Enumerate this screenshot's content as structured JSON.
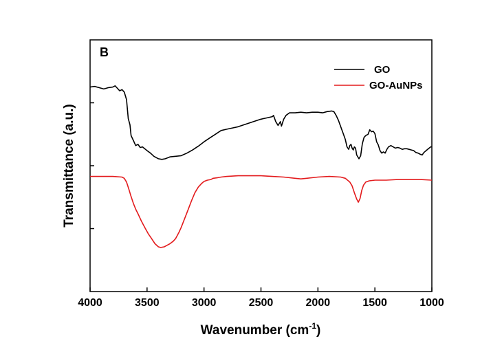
{
  "chart_data": {
    "type": "line",
    "panel_label": "B",
    "xlabel": "Wavenumber (cm",
    "xlabel_superscript": "-1",
    "xlabel_suffix": ")",
    "ylabel": "Transmittance (a.u.)",
    "xlim": [
      4000,
      1000
    ],
    "x_reversed": true,
    "ylim": [
      0,
      4
    ],
    "x_ticks": [
      4000,
      3500,
      3000,
      2500,
      2000,
      1500,
      1000
    ],
    "x_tick_labels": [
      "4000",
      "3500",
      "3000",
      "2500",
      "2000",
      "1500",
      "1000"
    ],
    "y_ticks": [
      1,
      2,
      3
    ],
    "y_tick_labels_shown": false,
    "grid": false,
    "legend_position": "top-right",
    "series": [
      {
        "name": "GO",
        "color": "#000000",
        "points": [
          [
            4000,
            3.25
          ],
          [
            3960,
            3.26
          ],
          [
            3920,
            3.24
          ],
          [
            3880,
            3.22
          ],
          [
            3840,
            3.24
          ],
          [
            3800,
            3.25
          ],
          [
            3780,
            3.27
          ],
          [
            3760,
            3.23
          ],
          [
            3740,
            3.19
          ],
          [
            3720,
            3.21
          ],
          [
            3700,
            3.17
          ],
          [
            3680,
            3.05
          ],
          [
            3665,
            2.75
          ],
          [
            3650,
            2.65
          ],
          [
            3640,
            2.48
          ],
          [
            3620,
            2.4
          ],
          [
            3600,
            2.32
          ],
          [
            3580,
            2.34
          ],
          [
            3560,
            2.29
          ],
          [
            3540,
            2.3
          ],
          [
            3500,
            2.24
          ],
          [
            3470,
            2.2
          ],
          [
            3440,
            2.15
          ],
          [
            3400,
            2.11
          ],
          [
            3370,
            2.1
          ],
          [
            3340,
            2.11
          ],
          [
            3300,
            2.14
          ],
          [
            3250,
            2.15
          ],
          [
            3200,
            2.16
          ],
          [
            3150,
            2.2
          ],
          [
            3100,
            2.25
          ],
          [
            3050,
            2.31
          ],
          [
            3000,
            2.38
          ],
          [
            2950,
            2.44
          ],
          [
            2900,
            2.5
          ],
          [
            2850,
            2.56
          ],
          [
            2800,
            2.58
          ],
          [
            2750,
            2.6
          ],
          [
            2700,
            2.62
          ],
          [
            2650,
            2.65
          ],
          [
            2600,
            2.68
          ],
          [
            2550,
            2.71
          ],
          [
            2500,
            2.74
          ],
          [
            2450,
            2.76
          ],
          [
            2400,
            2.78
          ],
          [
            2390,
            2.8
          ],
          [
            2370,
            2.7
          ],
          [
            2350,
            2.64
          ],
          [
            2330,
            2.7
          ],
          [
            2320,
            2.63
          ],
          [
            2300,
            2.74
          ],
          [
            2280,
            2.8
          ],
          [
            2250,
            2.84
          ],
          [
            2200,
            2.84
          ],
          [
            2150,
            2.85
          ],
          [
            2100,
            2.84
          ],
          [
            2050,
            2.85
          ],
          [
            2000,
            2.85
          ],
          [
            1960,
            2.84
          ],
          [
            1920,
            2.86
          ],
          [
            1880,
            2.87
          ],
          [
            1860,
            2.86
          ],
          [
            1840,
            2.8
          ],
          [
            1820,
            2.72
          ],
          [
            1800,
            2.62
          ],
          [
            1780,
            2.52
          ],
          [
            1760,
            2.42
          ],
          [
            1745,
            2.3
          ],
          [
            1730,
            2.26
          ],
          [
            1720,
            2.32
          ],
          [
            1710,
            2.34
          ],
          [
            1700,
            2.28
          ],
          [
            1690,
            2.25
          ],
          [
            1680,
            2.3
          ],
          [
            1670,
            2.28
          ],
          [
            1660,
            2.17
          ],
          [
            1640,
            2.11
          ],
          [
            1625,
            2.16
          ],
          [
            1610,
            2.35
          ],
          [
            1595,
            2.45
          ],
          [
            1580,
            2.48
          ],
          [
            1560,
            2.5
          ],
          [
            1545,
            2.57
          ],
          [
            1530,
            2.54
          ],
          [
            1515,
            2.55
          ],
          [
            1500,
            2.51
          ],
          [
            1485,
            2.38
          ],
          [
            1470,
            2.33
          ],
          [
            1455,
            2.24
          ],
          [
            1440,
            2.2
          ],
          [
            1425,
            2.22
          ],
          [
            1410,
            2.2
          ],
          [
            1395,
            2.26
          ],
          [
            1380,
            2.3
          ],
          [
            1360,
            2.32
          ],
          [
            1340,
            2.3
          ],
          [
            1320,
            2.28
          ],
          [
            1300,
            2.29
          ],
          [
            1280,
            2.28
          ],
          [
            1260,
            2.26
          ],
          [
            1240,
            2.27
          ],
          [
            1220,
            2.27
          ],
          [
            1200,
            2.26
          ],
          [
            1180,
            2.25
          ],
          [
            1160,
            2.24
          ],
          [
            1140,
            2.21
          ],
          [
            1120,
            2.2
          ],
          [
            1100,
            2.18
          ],
          [
            1085,
            2.17
          ],
          [
            1070,
            2.21
          ],
          [
            1050,
            2.24
          ],
          [
            1030,
            2.27
          ],
          [
            1010,
            2.3
          ],
          [
            1000,
            2.3
          ]
        ]
      },
      {
        "name": "GO-AuNPs",
        "color": "#e31a1c",
        "points": [
          [
            4000,
            1.83
          ],
          [
            3900,
            1.83
          ],
          [
            3800,
            1.83
          ],
          [
            3720,
            1.82
          ],
          [
            3700,
            1.8
          ],
          [
            3680,
            1.74
          ],
          [
            3660,
            1.63
          ],
          [
            3640,
            1.51
          ],
          [
            3620,
            1.4
          ],
          [
            3600,
            1.31
          ],
          [
            3575,
            1.22
          ],
          [
            3550,
            1.12
          ],
          [
            3520,
            1.02
          ],
          [
            3490,
            0.92
          ],
          [
            3460,
            0.84
          ],
          [
            3430,
            0.76
          ],
          [
            3400,
            0.71
          ],
          [
            3380,
            0.7
          ],
          [
            3350,
            0.71
          ],
          [
            3320,
            0.74
          ],
          [
            3300,
            0.76
          ],
          [
            3270,
            0.8
          ],
          [
            3250,
            0.84
          ],
          [
            3220,
            0.94
          ],
          [
            3200,
            1.02
          ],
          [
            3170,
            1.16
          ],
          [
            3140,
            1.3
          ],
          [
            3110,
            1.44
          ],
          [
            3080,
            1.57
          ],
          [
            3050,
            1.66
          ],
          [
            3020,
            1.72
          ],
          [
            3000,
            1.75
          ],
          [
            2970,
            1.77
          ],
          [
            2940,
            1.78
          ],
          [
            2920,
            1.8
          ],
          [
            2880,
            1.81
          ],
          [
            2850,
            1.82
          ],
          [
            2800,
            1.83
          ],
          [
            2700,
            1.84
          ],
          [
            2600,
            1.84
          ],
          [
            2500,
            1.84
          ],
          [
            2400,
            1.83
          ],
          [
            2300,
            1.82
          ],
          [
            2200,
            1.8
          ],
          [
            2150,
            1.79
          ],
          [
            2100,
            1.8
          ],
          [
            2000,
            1.82
          ],
          [
            1900,
            1.83
          ],
          [
            1800,
            1.82
          ],
          [
            1760,
            1.8
          ],
          [
            1720,
            1.74
          ],
          [
            1700,
            1.68
          ],
          [
            1680,
            1.57
          ],
          [
            1660,
            1.47
          ],
          [
            1645,
            1.42
          ],
          [
            1630,
            1.48
          ],
          [
            1615,
            1.61
          ],
          [
            1600,
            1.69
          ],
          [
            1580,
            1.74
          ],
          [
            1550,
            1.76
          ],
          [
            1500,
            1.77
          ],
          [
            1400,
            1.77
          ],
          [
            1300,
            1.78
          ],
          [
            1200,
            1.78
          ],
          [
            1100,
            1.78
          ],
          [
            1000,
            1.77
          ]
        ]
      }
    ]
  }
}
